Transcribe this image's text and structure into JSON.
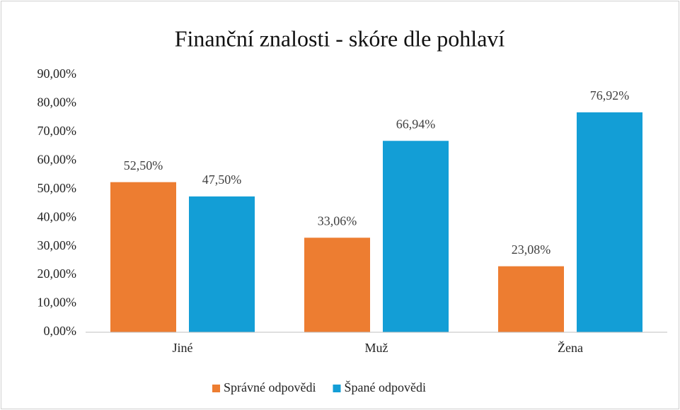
{
  "chart_data": {
    "type": "bar",
    "title": "Finanční znalosti - skóre dle pohlaví",
    "categories": [
      "Jiné",
      "Muž",
      "Žena"
    ],
    "series": [
      {
        "name": "Správné odpovědi",
        "color": "#ED7D31",
        "values": [
          52.5,
          33.06,
          23.08
        ],
        "value_labels": [
          "52,50%",
          "33,06%",
          "23,08%"
        ]
      },
      {
        "name": "Špané odpovědi",
        "color": "#139ED6",
        "values": [
          47.5,
          66.94,
          76.92
        ],
        "value_labels": [
          "47,50%",
          "66,94%",
          "76,92%"
        ]
      }
    ],
    "ylim": [
      0,
      90
    ],
    "yticks": [
      {
        "value": 0,
        "label": "0,00%"
      },
      {
        "value": 10,
        "label": "10,00%"
      },
      {
        "value": 20,
        "label": "20,00%"
      },
      {
        "value": 30,
        "label": "30,00%"
      },
      {
        "value": 40,
        "label": "40,00%"
      },
      {
        "value": 50,
        "label": "50,00%"
      },
      {
        "value": 60,
        "label": "60,00%"
      },
      {
        "value": 70,
        "label": "70,00%"
      },
      {
        "value": 80,
        "label": "80,00%"
      },
      {
        "value": 90,
        "label": "90,00%"
      }
    ],
    "grid": false,
    "legend": "bottom"
  }
}
